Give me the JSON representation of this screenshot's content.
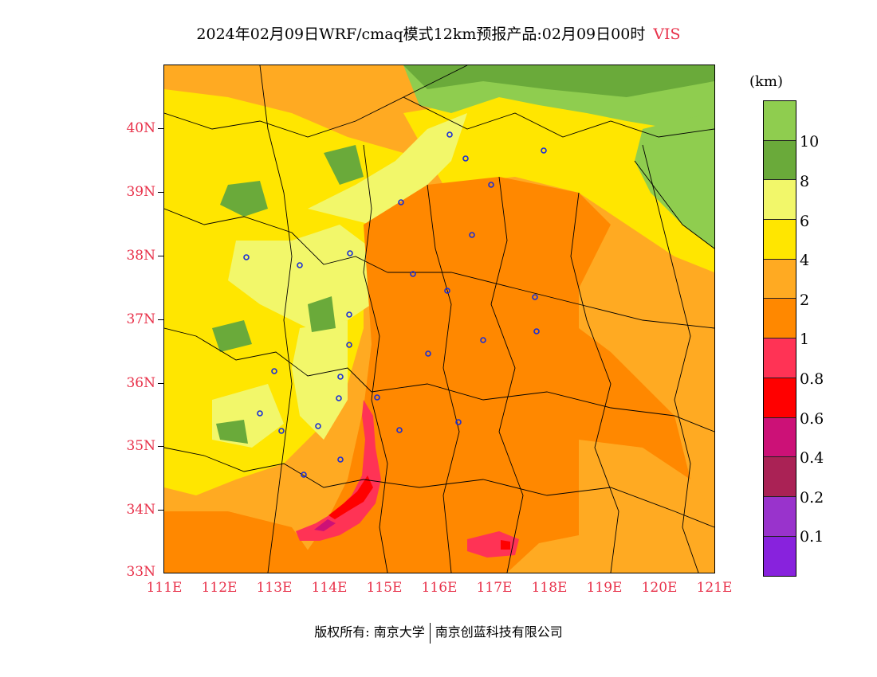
{
  "title": "2024年02月09日WRF/cmaq模式12km预报产品:02月09日00时",
  "variable": "VIS",
  "unit": "(km)",
  "y_axis_ticks": [
    "40N",
    "39N",
    "38N",
    "37N",
    "36N",
    "35N",
    "34N",
    "33N"
  ],
  "x_axis_ticks": [
    "111E",
    "112E",
    "113E",
    "114E",
    "115E",
    "116E",
    "117E",
    "118E",
    "119E",
    "120E",
    "121E"
  ],
  "colorbar": {
    "colors": [
      "#8fcd4f",
      "#6aaa3a",
      "#f2f76a",
      "#ffe600",
      "#ffaa22",
      "#ff8800",
      "#ff3355",
      "#ff0000",
      "#cc1177",
      "#aa2255",
      "#9933cc",
      "#8822dd"
    ],
    "labels": [
      "10",
      "8",
      "6",
      "4",
      "2",
      "1",
      "0.8",
      "0.6",
      "0.4",
      "0.2",
      "0.1"
    ]
  },
  "footer": {
    "left": "版权所有: 南京大学",
    "right": "南京创蓝科技有限公司"
  }
}
